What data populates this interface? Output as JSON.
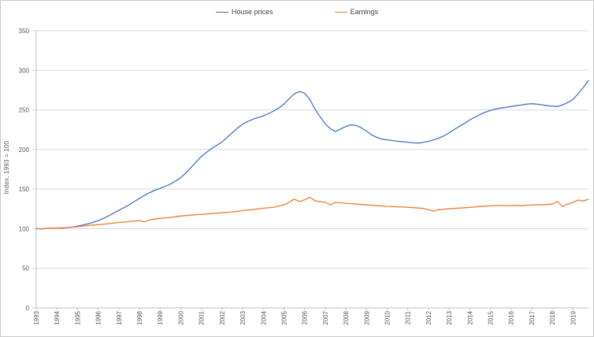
{
  "colors": {
    "background": "#ffffff",
    "border": "#c9c9c9",
    "grid": "#d9d9d9",
    "axis": "#bfbfbf",
    "tick_text": "#595959",
    "house_prices": "#4472c4",
    "earnings": "#ed7d31"
  },
  "chart_data": {
    "type": "line",
    "title": "",
    "xlabel": "",
    "ylabel": "Index, 1993 = 100",
    "ylim": [
      0,
      350
    ],
    "y_ticks": [
      0,
      50,
      100,
      150,
      200,
      250,
      300,
      350
    ],
    "grid": true,
    "legend_position": "top-center",
    "x_start": 1993,
    "x_step": 0.25,
    "x_ticks": [
      "1993",
      "1994",
      "1995",
      "1996",
      "1997",
      "1998",
      "1999",
      "2000",
      "2001",
      "2002",
      "2003",
      "2004",
      "2005",
      "2006",
      "2007",
      "2008",
      "2009",
      "2010",
      "2011",
      "2012",
      "2013",
      "2014",
      "2015",
      "2016",
      "2017",
      "2018",
      "2019"
    ],
    "series": [
      {
        "name": "House prices",
        "color": "#4472c4",
        "values": [
          100,
          99.7,
          100.3,
          100.6,
          100.9,
          100.6,
          101.3,
          102.1,
          103.2,
          104.6,
          106.1,
          108,
          110.2,
          113,
          116.1,
          119.6,
          123.2,
          126.6,
          130.1,
          134.2,
          138.3,
          142.2,
          145.6,
          148.6,
          151,
          153.4,
          156.3,
          160.2,
          164.5,
          170.4,
          177.2,
          184.3,
          191.2,
          196.4,
          201.3,
          205.4,
          209.5,
          215.3,
          221.2,
          227,
          232.1,
          235.4,
          238.2,
          240.3,
          242.4,
          245.3,
          248.5,
          252.4,
          257.3,
          264.2,
          270.4,
          273.2,
          271.1,
          263.4,
          251.2,
          241.3,
          232.4,
          226.2,
          222.8,
          225.9,
          229.1,
          231.2,
          230.3,
          227.4,
          223.2,
          218.4,
          215.3,
          213.1,
          212.2,
          211.3,
          210.4,
          209.8,
          209.2,
          208.4,
          208.1,
          208.9,
          210.3,
          212.2,
          214.4,
          217.3,
          221.2,
          225.3,
          229.4,
          233.2,
          237.3,
          240.8,
          244.2,
          247.1,
          249.3,
          251.2,
          252.4,
          253.3,
          254.2,
          255.3,
          256.1,
          257.2,
          257.8,
          257.2,
          256.4,
          255.3,
          254.6,
          254.2,
          256.3,
          259.4,
          263.2,
          270.4,
          278.3,
          287.1
        ]
      },
      {
        "name": "Earnings",
        "color": "#ed7d31",
        "values": [
          100,
          99.8,
          100.4,
          100.6,
          100.9,
          101.1,
          101.4,
          101.9,
          102.4,
          103.3,
          104,
          104.6,
          105.1,
          105.6,
          106.4,
          107.1,
          107.9,
          108.4,
          109,
          109.6,
          110.2,
          108.6,
          111.1,
          112.2,
          113,
          113.6,
          114.2,
          115.1,
          116,
          116.6,
          117.1,
          117.6,
          118.1,
          118.6,
          119,
          119.6,
          120.1,
          120.6,
          121.2,
          122,
          122.9,
          123.5,
          124.1,
          125,
          125.9,
          126.4,
          127.1,
          128.4,
          130.1,
          133.2,
          137.4,
          134.2,
          136.3,
          139.8,
          135.2,
          134.1,
          133.2,
          130.1,
          133.1,
          132.6,
          132.1,
          131.6,
          131.1,
          130.6,
          130.1,
          129.6,
          129.1,
          128.6,
          128.2,
          128,
          127.6,
          127.4,
          127,
          126.6,
          126.1,
          125.6,
          124.1,
          122.2,
          123.9,
          124.6,
          125.1,
          125.6,
          126,
          126.5,
          127,
          127.4,
          128,
          128.5,
          128.9,
          129.1,
          129.4,
          129.1,
          129.2,
          129.5,
          129.1,
          129.6,
          129.9,
          130.1,
          130.4,
          130.6,
          131.1,
          134.2,
          128.1,
          131.2,
          133.1,
          136.2,
          134.9,
          137.1
        ]
      }
    ]
  }
}
